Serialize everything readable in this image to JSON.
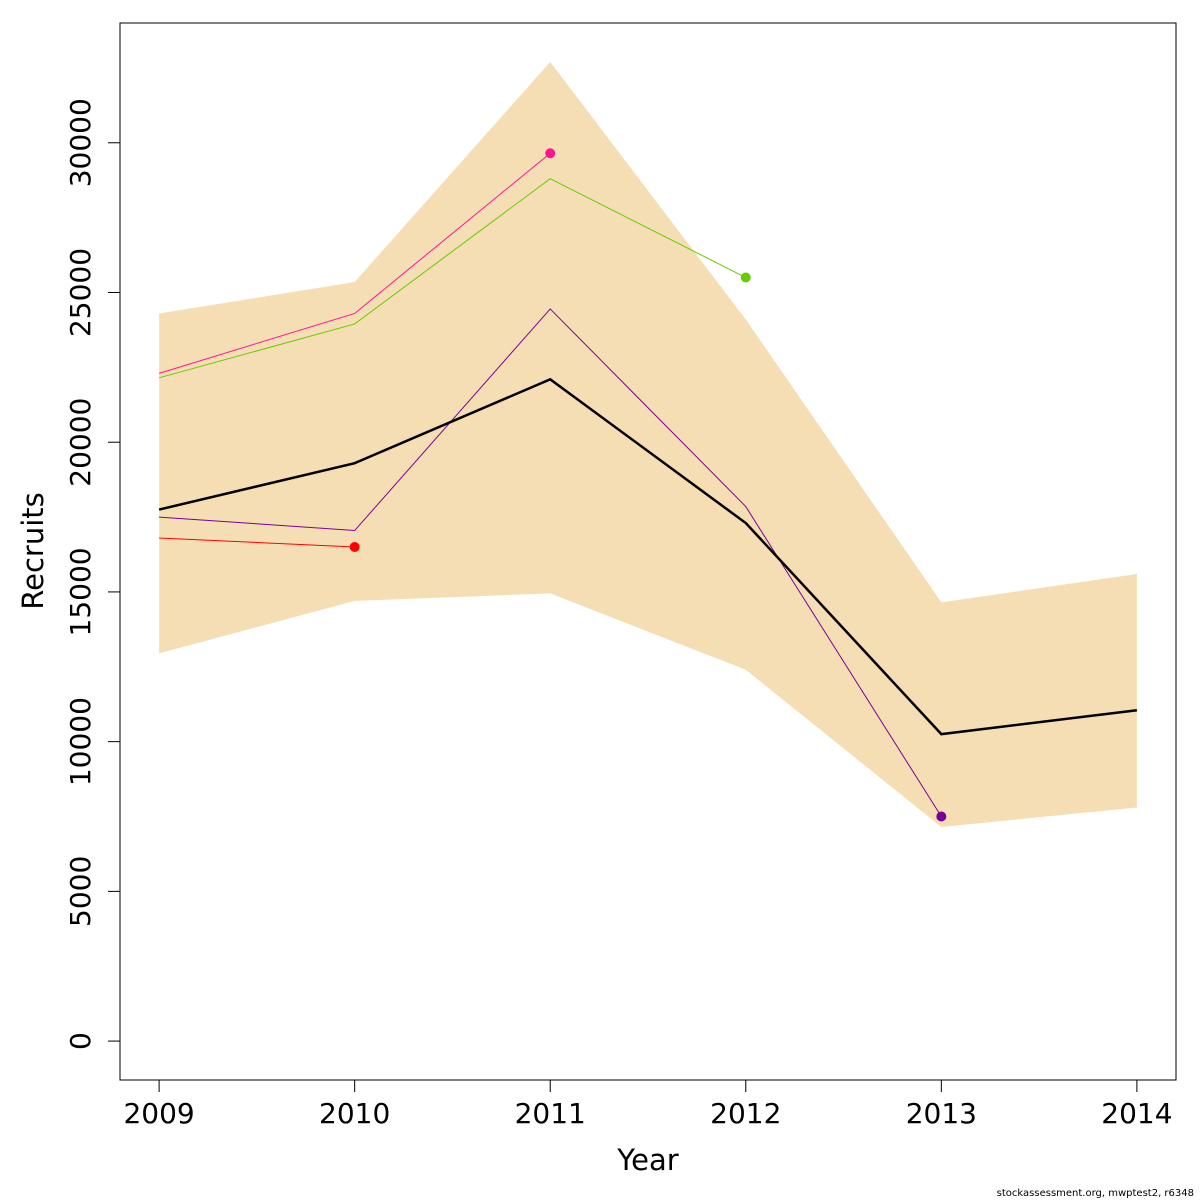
{
  "chart_data": {
    "type": "line",
    "xlabel": "Year",
    "ylabel": "Recruits",
    "x": [
      2009,
      2010,
      2011,
      2012,
      2013,
      2014
    ],
    "x_ticks": [
      "2009",
      "2010",
      "2011",
      "2012",
      "2013",
      "2014"
    ],
    "y_ticks": [
      "0",
      "5000",
      "10000",
      "15000",
      "20000",
      "25000",
      "30000"
    ],
    "y_tick_values": [
      0,
      5000,
      10000,
      15000,
      20000,
      25000,
      30000
    ],
    "xlim": [
      2008.8,
      2014.2
    ],
    "ylim": [
      -1300,
      34000
    ],
    "grid": false,
    "band": {
      "color": "#f5deb3",
      "upper": [
        24300,
        25350,
        32700,
        24100,
        14650,
        15600
      ],
      "lower": [
        12950,
        14700,
        14950,
        12400,
        7150,
        7800
      ]
    },
    "main_series": {
      "color": "#000000",
      "values": [
        17750,
        19300,
        22100,
        17300,
        10250,
        11050
      ]
    },
    "retro_series": [
      {
        "color": "#ff0000",
        "x": [
          2009,
          2010
        ],
        "values": [
          16800,
          16500
        ]
      },
      {
        "color": "#ff1493",
        "x": [
          2009,
          2010,
          2011
        ],
        "values": [
          22300,
          24300,
          29650
        ]
      },
      {
        "color": "#66cc00",
        "x": [
          2009,
          2010,
          2011,
          2012
        ],
        "values": [
          22150,
          23950,
          28800,
          25500
        ]
      },
      {
        "color": "#7b0099",
        "x": [
          2009,
          2010,
          2011,
          2012,
          2013
        ],
        "values": [
          17500,
          17050,
          24450,
          17850,
          7500
        ]
      }
    ]
  },
  "footer": "stockassessment.org, mwptest2, r6348"
}
